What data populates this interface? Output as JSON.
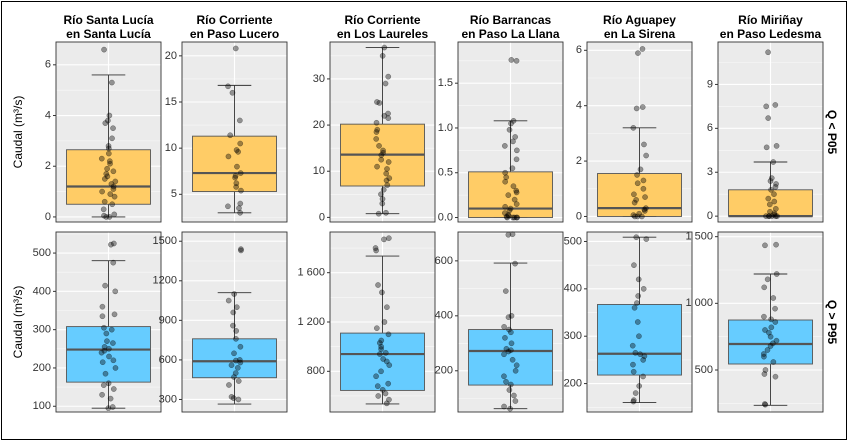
{
  "chart_data": {
    "type": "boxplot",
    "y_axis_label": "Caudal (m³/s)",
    "rows": [
      {
        "label": "Q < P05",
        "color": "#FFCC66"
      },
      {
        "label": "Q > P95",
        "color": "#66CCFF"
      }
    ],
    "colors": {
      "q_low": "#FFCC66",
      "q_high": "#66CCFF",
      "panel_bg": "#EBEBEB",
      "median": "#555555"
    },
    "stations": [
      {
        "title1": "Río Santa Lucía",
        "title2": "en Santa Lucía"
      },
      {
        "title1": "Río Corriente",
        "title2": "en Paso Lucero"
      },
      {
        "title1": "Río Corriente",
        "title2": "en Los Laureles"
      },
      {
        "title1": "Río Barrancas",
        "title2": "en Paso La Llana"
      },
      {
        "title1": "Río Aguapey",
        "title2": "en La Sirena"
      },
      {
        "title1": "Río Miriñay",
        "title2": "en Paso Ledesma"
      }
    ],
    "panels": [
      {
        "row": 0,
        "col": 0,
        "ylim": [
          -0.2,
          6.9
        ],
        "ticks": [
          0,
          2,
          4,
          6
        ],
        "tick_labels": [
          "0",
          "2",
          "4",
          "6"
        ],
        "box": {
          "min": 0.0,
          "q1": 0.5,
          "median": 1.2,
          "q3": 2.65,
          "max": 5.6
        },
        "points": [
          6.6,
          5.3,
          4.0,
          3.8,
          3.7,
          3.5,
          3.1,
          2.8,
          2.7,
          2.5,
          2.3,
          2.2,
          2.1,
          1.9,
          1.8,
          1.7,
          1.6,
          1.5,
          1.4,
          1.3,
          1.2,
          1.1,
          1.0,
          0.9,
          0.8,
          0.6,
          0.5,
          0.3,
          0.1,
          0.05,
          0.0,
          0.0
        ]
      },
      {
        "row": 0,
        "col": 1,
        "ylim": [
          2.0,
          21.5
        ],
        "ticks": [
          5,
          10,
          15,
          20
        ],
        "tick_labels": [
          "5",
          "10",
          "15",
          "20"
        ],
        "box": {
          "min": 3.0,
          "q1": 5.3,
          "median": 7.3,
          "q3": 11.3,
          "max": 16.8
        },
        "points": [
          20.8,
          16.7,
          16.0,
          13.0,
          11.4,
          10.5,
          9.8,
          9.6,
          9.1,
          8.0,
          7.3,
          7.0,
          6.8,
          6.2,
          5.8,
          5.4,
          4.0,
          3.7,
          3.5,
          3.0
        ]
      },
      {
        "row": 0,
        "col": 2,
        "ylim": [
          -1.0,
          38.0
        ],
        "ticks": [
          0,
          10,
          20,
          30
        ],
        "tick_labels": [
          "0",
          "10",
          "20",
          "30"
        ],
        "box": {
          "min": 0.8,
          "q1": 6.8,
          "median": 13.6,
          "q3": 20.2,
          "max": 36.8
        },
        "points": [
          36.8,
          35.0,
          30.5,
          29.0,
          25.0,
          24.8,
          22.5,
          22.0,
          21.5,
          20.5,
          19.0,
          18.5,
          17.0,
          15.5,
          14.5,
          14.0,
          13.5,
          12.5,
          12.0,
          11.0,
          10.5,
          9.5,
          8.5,
          8.0,
          7.0,
          6.0,
          5.0,
          4.0,
          3.0,
          1.0,
          0.8
        ]
      },
      {
        "row": 0,
        "col": 3,
        "ylim": [
          -0.05,
          1.96
        ],
        "ticks": [
          0.0,
          0.5,
          1.0,
          1.5
        ],
        "tick_labels": [
          "0.0",
          "0.5",
          "1.0",
          "1.5"
        ],
        "box": {
          "min": 0.0,
          "q1": 0.0,
          "median": 0.1,
          "q3": 0.51,
          "max": 1.08
        },
        "points": [
          1.76,
          1.75,
          1.08,
          1.05,
          0.98,
          0.9,
          0.85,
          0.8,
          0.75,
          0.65,
          0.55,
          0.5,
          0.45,
          0.4,
          0.35,
          0.3,
          0.28,
          0.25,
          0.2,
          0.15,
          0.12,
          0.1,
          0.08,
          0.05,
          0.03,
          0.02,
          0.01,
          0.0,
          0.0,
          0.0,
          0.0,
          0.0
        ]
      },
      {
        "row": 0,
        "col": 4,
        "ylim": [
          -0.2,
          6.3
        ],
        "ticks": [
          0,
          2,
          4,
          6
        ],
        "tick_labels": [
          "0",
          "2",
          "4",
          "6"
        ],
        "box": {
          "min": 0.0,
          "q1": 0.0,
          "median": 0.3,
          "q3": 1.55,
          "max": 3.2
        },
        "points": [
          6.05,
          5.9,
          3.95,
          3.9,
          3.2,
          2.6,
          2.2,
          1.7,
          1.5,
          1.3,
          1.2,
          1.0,
          0.8,
          0.7,
          0.6,
          0.5,
          0.3,
          0.25,
          0.2,
          0.1,
          0.05,
          0.0,
          0.0,
          0.0
        ]
      },
      {
        "row": 0,
        "col": 5,
        "ylim": [
          -0.4,
          11.9
        ],
        "ticks": [
          0,
          3,
          6,
          9
        ],
        "tick_labels": [
          "0",
          "3",
          "6",
          "9"
        ],
        "box": {
          "min": 0.0,
          "q1": 0.0,
          "median": 0.0,
          "q3": 1.8,
          "max": 3.7
        },
        "points": [
          11.2,
          7.6,
          7.5,
          6.7,
          4.8,
          4.7,
          3.7,
          2.6,
          2.4,
          2.2,
          2.0,
          1.8,
          1.5,
          1.2,
          1.0,
          0.8,
          0.5,
          0.3,
          0.2,
          0.1,
          0.0,
          0.0,
          0.0,
          0.0,
          0.0,
          0.0
        ]
      },
      {
        "row": 1,
        "col": 0,
        "ylim": [
          85,
          555
        ],
        "ticks": [
          100,
          200,
          300,
          400,
          500
        ],
        "tick_labels": [
          "100",
          "200",
          "300",
          "400",
          "500"
        ],
        "box": {
          "min": 95,
          "q1": 163,
          "median": 248,
          "q3": 308,
          "max": 480
        },
        "points": [
          525,
          522,
          475,
          415,
          400,
          360,
          340,
          335,
          305,
          300,
          290,
          270,
          265,
          255,
          250,
          245,
          240,
          230,
          220,
          215,
          200,
          185,
          160,
          155,
          145,
          130,
          120,
          98,
          95
        ]
      },
      {
        "row": 1,
        "col": 1,
        "ylim": [
          205,
          1570
        ],
        "ticks": [
          300,
          600,
          900,
          1200,
          1500
        ],
        "tick_labels": [
          "300",
          "600",
          "900",
          "1200",
          "1500"
        ],
        "box": {
          "min": 265,
          "q1": 465,
          "median": 590,
          "q3": 760,
          "max": 1110
        },
        "points": [
          1440,
          1430,
          1100,
          1050,
          1000,
          960,
          860,
          820,
          760,
          700,
          650,
          600,
          595,
          580,
          560,
          540,
          500,
          470,
          440,
          410,
          320,
          310,
          300
        ]
      },
      {
        "row": 1,
        "col": 2,
        "ylim": [
          470,
          1930
        ],
        "ticks": [
          800,
          1200,
          1600
        ],
        "tick_labels": [
          "800",
          "1 200",
          "1 600"
        ],
        "box": {
          "min": 535,
          "q1": 645,
          "median": 940,
          "q3": 1110,
          "max": 1735
        },
        "points": [
          1880,
          1870,
          1800,
          1780,
          1500,
          1440,
          1320,
          1200,
          1150,
          1100,
          1050,
          1030,
          1000,
          980,
          950,
          940,
          900,
          880,
          850,
          800,
          760,
          700,
          680,
          650,
          620,
          600,
          570,
          540
        ]
      },
      {
        "row": 1,
        "col": 3,
        "ylim": [
          50,
          705
        ],
        "ticks": [
          200,
          400,
          600
        ],
        "tick_labels": [
          "200",
          "400",
          "600"
        ],
        "box": {
          "min": 62,
          "q1": 148,
          "median": 272,
          "q3": 350,
          "max": 592
        },
        "points": [
          697,
          695,
          590,
          490,
          400,
          395,
          360,
          350,
          340,
          320,
          300,
          280,
          275,
          270,
          260,
          240,
          220,
          200,
          180,
          160,
          150,
          130,
          110,
          90,
          70,
          62
        ]
      },
      {
        "row": 1,
        "col": 4,
        "ylim": [
          140,
          520
        ],
        "ticks": [
          200,
          300,
          400,
          500
        ],
        "tick_labels": [
          "200",
          "300",
          "400",
          "500"
        ],
        "box": {
          "min": 160,
          "q1": 218,
          "median": 263,
          "q3": 367,
          "max": 509
        },
        "points": [
          509,
          505,
          450,
          420,
          400,
          385,
          370,
          360,
          330,
          300,
          280,
          265,
          262,
          258,
          250,
          240,
          225,
          215,
          195,
          180,
          165,
          162
        ]
      },
      {
        "row": 1,
        "col": 5,
        "ylim": [
          185,
          1535
        ],
        "ticks": [
          500,
          1000,
          1500
        ],
        "tick_labels": [
          "500",
          "1 000",
          "1 500"
        ],
        "box": {
          "min": 235,
          "q1": 545,
          "median": 695,
          "q3": 875,
          "max": 1220
        },
        "points": [
          1440,
          1435,
          1220,
          1180,
          1120,
          1040,
          960,
          900,
          880,
          860,
          820,
          800,
          780,
          750,
          720,
          700,
          680,
          650,
          620,
          600,
          560,
          500,
          470,
          450,
          245,
          240
        ]
      }
    ]
  }
}
